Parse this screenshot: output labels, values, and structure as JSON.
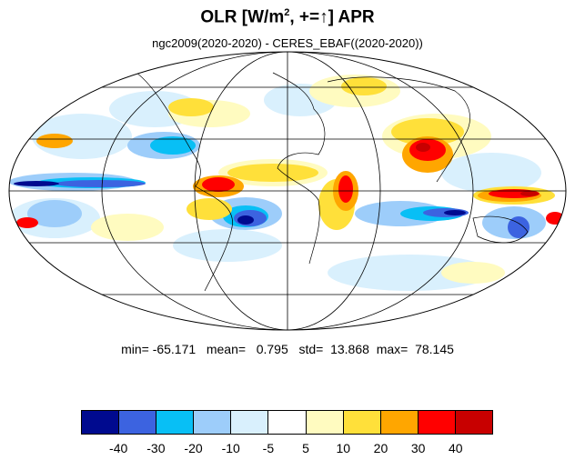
{
  "title": {
    "main": "OLR [W/m",
    "sup": "2",
    "rest": ", +=↑] APR"
  },
  "subtitle": "ngc2009(2020-2020) - CERES_EBAF((2020-2020))",
  "stats": {
    "min_label": "min=",
    "min": "-65.171",
    "mean_label": "mean=",
    "mean": "0.795",
    "std_label": "std=",
    "std": "13.868",
    "max_label": "max=",
    "max": "78.145"
  },
  "colorbar": {
    "colors": [
      "#000a8f",
      "#3c63e0",
      "#08bff5",
      "#9dcdfa",
      "#d9f0fd",
      "#ffffff",
      "#fffbc0",
      "#ffe03a",
      "#ffa600",
      "#ff0000",
      "#c80000"
    ],
    "labels": [
      "-40",
      "-30",
      "-20",
      "-10",
      "-5",
      "5",
      "10",
      "20",
      "30",
      "40"
    ]
  },
  "map": {
    "projection": "mollweide",
    "month": "APR"
  }
}
